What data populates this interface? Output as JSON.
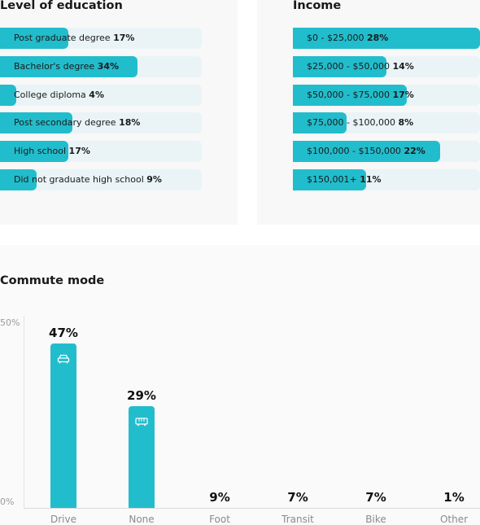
{
  "colors": {
    "bar": "#22bdcc",
    "track": "#eaf4f7",
    "card": "#f8f8f8"
  },
  "education": {
    "title": "Level of education",
    "chart_data": {
      "type": "bar",
      "orientation": "horizontal",
      "title": "Level of education",
      "categories": [
        "Post graduate degree",
        "Bachelor's degree",
        "College diploma",
        "Post secondary degree",
        "High school",
        "Did not graduate high school"
      ],
      "values": [
        17,
        34,
        4,
        18,
        17,
        9
      ],
      "labels": [
        "17%",
        "34%",
        "4%",
        "18%",
        "17%",
        "9%"
      ],
      "xlim": [
        0,
        50
      ]
    }
  },
  "income": {
    "title": "Income",
    "chart_data": {
      "type": "bar",
      "orientation": "horizontal",
      "title": "Income",
      "categories": [
        "$0 - $25,000",
        "$25,000 - $50,000",
        "$50,000 - $75,000",
        "$75,000 - $100,000",
        "$100,000 - $150,000",
        "$150,001+"
      ],
      "values": [
        28,
        14,
        17,
        8,
        22,
        11
      ],
      "labels": [
        "28%",
        "14%",
        "17%",
        "8%",
        "22%",
        "11%"
      ],
      "xlim": [
        0,
        28
      ]
    }
  },
  "commute": {
    "title": "Commute mode",
    "chart_data": {
      "type": "bar",
      "title": "Commute mode",
      "categories": [
        "Drive",
        "None",
        "Foot",
        "Transit",
        "Bike",
        "Other"
      ],
      "values": [
        47,
        29,
        9,
        7,
        7,
        1
      ],
      "labels": [
        "47%",
        "29%",
        "9%",
        "7%",
        "7%",
        "1%"
      ],
      "icons": [
        "car-icon",
        "bus-icon",
        "",
        "",
        "",
        ""
      ],
      "y_ticks": [
        "50%",
        "0%"
      ],
      "ylim": [
        0,
        50
      ],
      "grid": false
    }
  }
}
